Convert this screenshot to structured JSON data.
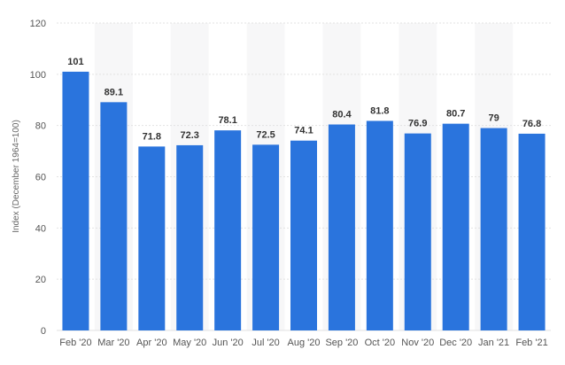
{
  "chart_data": {
    "type": "bar",
    "categories": [
      "Feb '20",
      "Mar '20",
      "Apr '20",
      "May '20",
      "Jun '20",
      "Jul '20",
      "Aug '20",
      "Sep '20",
      "Oct '20",
      "Nov '20",
      "Dec '20",
      "Jan '21",
      "Feb '21"
    ],
    "values": [
      101,
      89.1,
      71.8,
      72.3,
      78.1,
      72.5,
      74.1,
      80.4,
      81.8,
      76.9,
      80.7,
      79,
      76.8
    ],
    "data_labels": [
      "101",
      "89.1",
      "71.8",
      "72.3",
      "78.1",
      "72.5",
      "74.1",
      "80.4",
      "81.8",
      "76.9",
      "80.7",
      "79",
      "76.8"
    ],
    "ylabel": "Index (December 1964=100)",
    "ylim": [
      0,
      120
    ],
    "yticks": [
      0,
      20,
      40,
      60,
      80,
      100,
      120
    ],
    "grid": true,
    "bar_color": "#2a74dd",
    "band_color": "#f7f7f8",
    "grid_color": "#e2e2e2"
  }
}
